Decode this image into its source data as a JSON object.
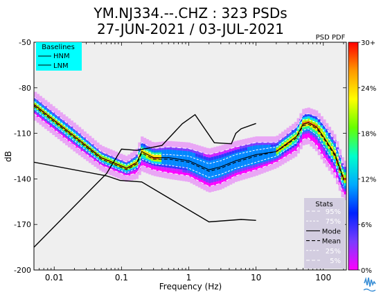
{
  "chart_data": {
    "type": "heatmap",
    "title": "YM.NJ334.--.CHZ : 323 PSDs",
    "subtitle": "27-JUN-2021 / 03-JUL-2021",
    "xlabel": "Frequency (Hz)",
    "ylabel": "dB",
    "x_scale": "log",
    "xlim": [
      0.005,
      220
    ],
    "ylim": [
      -200,
      -50
    ],
    "x_ticks": [
      {
        "value": 0.01,
        "label": "0.01"
      },
      {
        "value": 0.1,
        "label": "0.1"
      },
      {
        "value": 1,
        "label": "1"
      },
      {
        "value": 10,
        "label": "10"
      },
      {
        "value": 100,
        "label": "100"
      }
    ],
    "y_ticks": [
      {
        "value": -50,
        "label": "-50"
      },
      {
        "value": -80,
        "label": "-80"
      },
      {
        "value": -110,
        "label": "-110"
      },
      {
        "value": -140,
        "label": "-140"
      },
      {
        "value": -170,
        "label": "-170"
      },
      {
        "value": -200,
        "label": "-200"
      }
    ],
    "colorbar": {
      "title": "PSD PDF",
      "ticks": [
        "30+",
        "24%",
        "18%",
        "12%",
        "6%",
        "0%"
      ],
      "stops": [
        "#ff00ff",
        "#7a3cff",
        "#0022ff",
        "#00aaff",
        "#00ffcc",
        "#66ff00",
        "#ffff00",
        "#ff9900",
        "#ff0000"
      ]
    },
    "baselines_legend": {
      "title": "Baselines",
      "items": [
        "HNM",
        "LNM"
      ],
      "bg": "#00ffff"
    },
    "stats_legend": {
      "title": "Stats",
      "items": [
        "95%",
        "75%",
        "Mode",
        "Mean",
        "25%",
        "5%"
      ],
      "bg": "#d3cde0"
    },
    "series": [
      {
        "name": "HNM",
        "x": [
          0.005,
          0.06,
          0.095,
          0.2,
          2,
          6,
          10
        ],
        "y": [
          -129,
          -138,
          -141,
          -142,
          -168.3,
          -166.7,
          -167.3
        ]
      },
      {
        "name": "LNM",
        "x": [
          0.005,
          0.06,
          0.1,
          0.17,
          0.4,
          0.8,
          1.24,
          2.4,
          4.3,
          5,
          6,
          10
        ],
        "y": [
          -185,
          -136.5,
          -120.4,
          -121.2,
          -118,
          -103.7,
          -97.7,
          -116.2,
          -116.9,
          -110,
          -107,
          -103.5
        ]
      },
      {
        "name": "Mode",
        "x": [
          0.005,
          0.02,
          0.05,
          0.12,
          0.17,
          0.2,
          0.3,
          0.5,
          1,
          2,
          3,
          5,
          10,
          20,
          40,
          50,
          60,
          80,
          100,
          150,
          200
        ],
        "y": [
          -91,
          -112,
          -126,
          -133,
          -129,
          -122,
          -126,
          -126,
          -128,
          -134,
          -132,
          -128,
          -124,
          -122,
          -112,
          -104,
          -103,
          -106,
          -112,
          -124,
          -140
        ]
      },
      {
        "name": "Mean",
        "x": [
          0.005,
          0.02,
          0.05,
          0.12,
          0.17,
          0.2,
          0.3,
          0.5,
          1,
          2,
          3,
          5,
          10,
          20,
          40,
          50,
          60,
          80,
          100,
          150,
          200
        ],
        "y": [
          -92,
          -113,
          -127,
          -134,
          -130,
          -123,
          -127,
          -127,
          -129,
          -135,
          -133,
          -129,
          -125,
          -122,
          -113,
          -105,
          -104,
          -107,
          -113,
          -125,
          -141
        ]
      },
      {
        "name": "95%",
        "x": [
          0.005,
          0.02,
          0.05,
          0.12,
          0.17,
          0.2,
          0.3,
          0.5,
          1,
          2,
          3,
          5,
          10,
          20,
          40,
          50,
          60,
          80,
          100,
          150,
          200
        ],
        "y": [
          -86,
          -107,
          -122,
          -129,
          -124,
          -116,
          -120,
          -119,
          -120,
          -124,
          -122,
          -119,
          -116,
          -116,
          -106,
          -98,
          -97,
          -99,
          -104,
          -115,
          -132
        ]
      },
      {
        "name": "75%",
        "x": [
          0.005,
          0.02,
          0.05,
          0.12,
          0.17,
          0.2,
          0.3,
          0.5,
          1,
          2,
          3,
          5,
          10,
          20,
          40,
          50,
          60,
          80,
          100,
          150,
          200
        ],
        "y": [
          -89,
          -110,
          -124,
          -131,
          -127,
          -120,
          -124,
          -124,
          -125,
          -130,
          -128,
          -124,
          -121,
          -119,
          -109,
          -101,
          -101,
          -103,
          -108,
          -120,
          -137
        ]
      },
      {
        "name": "25%",
        "x": [
          0.005,
          0.02,
          0.05,
          0.12,
          0.17,
          0.2,
          0.3,
          0.5,
          1,
          2,
          3,
          5,
          10,
          20,
          40,
          50,
          60,
          80,
          100,
          150,
          200
        ],
        "y": [
          -94,
          -115,
          -129,
          -136,
          -133,
          -127,
          -130,
          -131,
          -133,
          -139,
          -137,
          -133,
          -129,
          -125,
          -116,
          -108,
          -107,
          -111,
          -118,
          -130,
          -145
        ]
      },
      {
        "name": "5%",
        "x": [
          0.005,
          0.02,
          0.05,
          0.12,
          0.17,
          0.2,
          0.3,
          0.5,
          1,
          2,
          3,
          5,
          10,
          20,
          40,
          50,
          60,
          80,
          100,
          150,
          200
        ],
        "y": [
          -97,
          -118,
          -131,
          -138,
          -136,
          -131,
          -134,
          -136,
          -138,
          -145,
          -143,
          -138,
          -134,
          -129,
          -121,
          -114,
          -113,
          -118,
          -125,
          -136,
          -150
        ]
      }
    ],
    "grid": false,
    "background": "#efefef"
  }
}
